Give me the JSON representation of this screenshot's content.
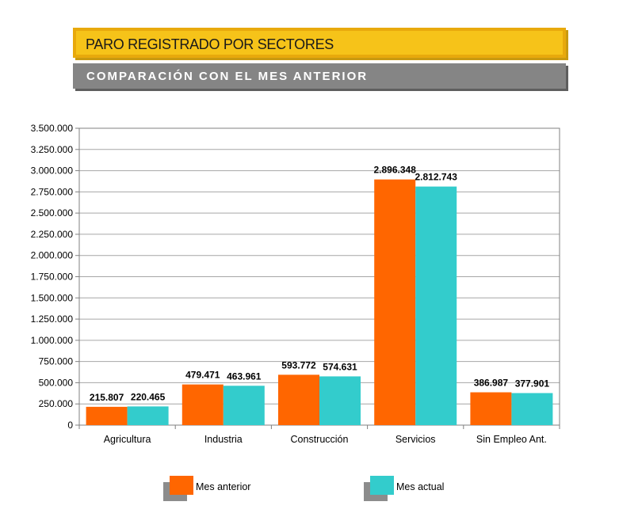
{
  "header": {
    "title": "PARO REGISTRADO POR SECTORES",
    "subtitle": "COMPARACIÓN CON EL MES ANTERIOR"
  },
  "chart_data": {
    "type": "bar",
    "categories": [
      "Agricultura",
      "Industria",
      "Construcción",
      "Servicios",
      "Sin Empleo Ant."
    ],
    "series": [
      {
        "name": "Mes anterior",
        "color": "#ff6600",
        "values": [
          215807,
          479471,
          593772,
          2896348,
          386987
        ],
        "labels": [
          "215.807",
          "479.471",
          "593.772",
          "2.896.348",
          "386.987"
        ]
      },
      {
        "name": "Mes actual",
        "color": "#33cccc",
        "values": [
          220465,
          463961,
          574631,
          2812743,
          377901
        ],
        "labels": [
          "220.465",
          "463.961",
          "574.631",
          "2.812.743",
          "377.901"
        ]
      }
    ],
    "ylim": [
      0,
      3500000
    ],
    "yticks": [
      "0",
      "250.000",
      "500.000",
      "750.000",
      "1.000.000",
      "1.250.000",
      "1.500.000",
      "1.750.000",
      "2.000.000",
      "2.250.000",
      "2.500.000",
      "2.750.000",
      "3.000.000",
      "3.250.000",
      "3.500.000"
    ],
    "grid": true,
    "legend_position": "bottom"
  }
}
